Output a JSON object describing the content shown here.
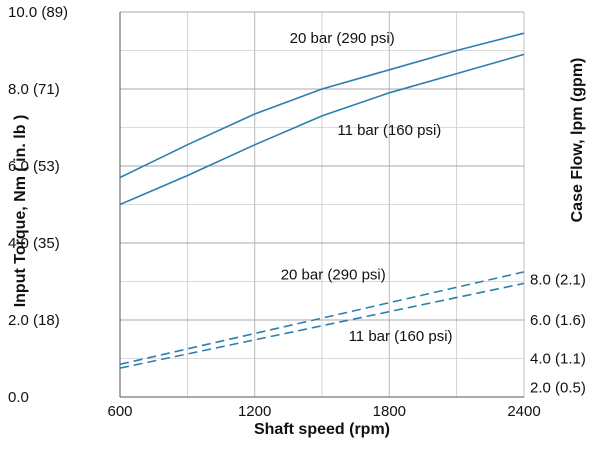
{
  "chart_data": {
    "type": "line",
    "xlabel": "Shaft speed (rpm)",
    "ylabel_left": "Input Torque, Nm ( in. lb )",
    "ylabel_right": "Case Flow, lpm (gpm)",
    "x_ticks": [
      600,
      1200,
      1800,
      2400
    ],
    "xlim": [
      600,
      2400
    ],
    "ylim": [
      0,
      10
    ],
    "left_ticks": [
      {
        "value": 0,
        "label": "0.0"
      },
      {
        "value": 2,
        "label": "2.0 (18)"
      },
      {
        "value": 4,
        "label": "4.0 (35)"
      },
      {
        "value": 6,
        "label": "6.0 (53)"
      },
      {
        "value": 8,
        "label": "8.0 (71)"
      },
      {
        "value": 10,
        "label": "10.0 (89)"
      }
    ],
    "right_ticks": [
      {
        "value": 0.25,
        "label": "2.0 (0.5)"
      },
      {
        "value": 1.0,
        "label": "4.0 (1.1)"
      },
      {
        "value": 2.0,
        "label": "6.0 (1.6)"
      },
      {
        "value": 3.05,
        "label": "8.0 (2.1)"
      }
    ],
    "grid": true,
    "line_color": "#2a7fb0",
    "series": [
      {
        "name": "20 bar (290 psi)",
        "axis": "torque",
        "style": "solid",
        "x": [
          600,
          900,
          1200,
          1500,
          1800,
          2100,
          2400
        ],
        "y": [
          5.7,
          6.55,
          7.35,
          8.0,
          8.5,
          9.0,
          9.45
        ]
      },
      {
        "name": "11 bar (160 psi)",
        "axis": "torque",
        "style": "solid",
        "x": [
          600,
          900,
          1200,
          1500,
          1800,
          2100,
          2400
        ],
        "y": [
          5.0,
          5.75,
          6.55,
          7.3,
          7.9,
          8.4,
          8.9
        ]
      },
      {
        "name": "20 bar (290 psi)",
        "axis": "case flow",
        "style": "dashed",
        "x": [
          600,
          2400
        ],
        "y": [
          0.85,
          3.25
        ]
      },
      {
        "name": "11 bar (160 psi)",
        "axis": "case flow",
        "style": "dashed",
        "x": [
          600,
          2400
        ],
        "y": [
          0.75,
          2.95
        ]
      }
    ],
    "annotations": [
      {
        "text": "20 bar (290 psi)",
        "x": 1590,
        "y": 9.2
      },
      {
        "text": "11 bar (160 psi)",
        "x": 1800,
        "y": 6.8
      },
      {
        "text": "20 bar (290 psi)",
        "x": 1550,
        "y": 3.05
      },
      {
        "text": "11 bar (160 psi)",
        "x": 1850,
        "y": 1.45
      }
    ]
  }
}
